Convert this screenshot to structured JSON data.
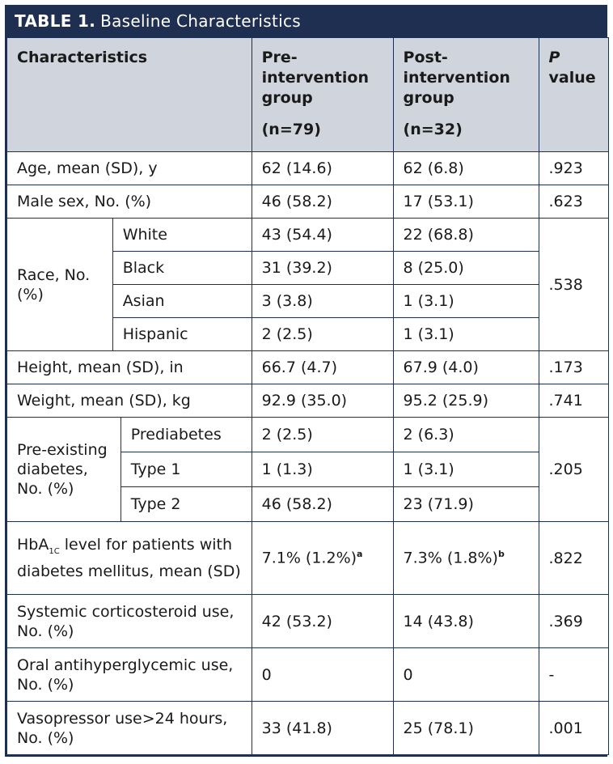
{
  "title": {
    "number": "TABLE 1.",
    "text": "Baseline Characteristics"
  },
  "headers": {
    "characteristics": "Characteristics",
    "pre": "Pre-intervention group",
    "pre_n": "(n=79)",
    "post": "Post-intervention group",
    "post_n": "(n=32)",
    "p_italic": "P",
    "p_rest": "value"
  },
  "rows": {
    "age": {
      "label": "Age, mean (SD), y",
      "pre": "62 (14.6)",
      "post": "62 (6.8)",
      "p": ".923"
    },
    "male": {
      "label": "Male sex, No. (%)",
      "pre": "46 (58.2)",
      "post": "17 (53.1)",
      "p": ".623"
    },
    "race": {
      "label": "Race, No. (%)",
      "p": ".538",
      "sub": [
        {
          "label": "White",
          "pre": "43 (54.4)",
          "post": "22 (68.8)"
        },
        {
          "label": "Black",
          "pre": "31 (39.2)",
          "post": "8 (25.0)"
        },
        {
          "label": "Asian",
          "pre": "3 (3.8)",
          "post": "1 (3.1)"
        },
        {
          "label": "Hispanic",
          "pre": "2 (2.5)",
          "post": "1 (3.1)"
        }
      ]
    },
    "height": {
      "label": "Height, mean (SD), in",
      "pre": "66.7 (4.7)",
      "post": "67.9 (4.0)",
      "p": ".173"
    },
    "weight": {
      "label": "Weight, mean (SD), kg",
      "pre": "92.9 (35.0)",
      "post": "95.2 (25.9)",
      "p": ".741"
    },
    "diabetes": {
      "label": "Pre-existing diabetes, No. (%)",
      "p": ".205",
      "sub": [
        {
          "label": "Prediabetes",
          "pre": "2 (2.5)",
          "post": "2 (6.3)"
        },
        {
          "label": "Type 1",
          "pre": "1 (1.3)",
          "post": "1 (3.1)"
        },
        {
          "label": "Type 2",
          "pre": "46 (58.2)",
          "post": "23 (71.9)"
        }
      ]
    },
    "hba1c": {
      "label_a": "HbA",
      "label_sub": "1C",
      "label_b": " level for patients with diabetes mellitus, mean (SD)",
      "pre": "7.1% (1.2%)",
      "pre_note": "a",
      "post": "7.3% (1.8%)",
      "post_note": "b",
      "p": ".822"
    },
    "steroid": {
      "label": "Systemic corticosteroid use, No. (%)",
      "pre": "42 (53.2)",
      "post": "14 (43.8)",
      "p": ".369"
    },
    "oral": {
      "label": "Oral antihyperglycemic use, No. (%)",
      "pre": "0",
      "post": "0",
      "p": "-"
    },
    "vaso": {
      "label": "Vasopressor use>24 hours, No. (%)",
      "pre": "33 (41.8)",
      "post": "25 (78.1)",
      "p": ".001"
    }
  }
}
